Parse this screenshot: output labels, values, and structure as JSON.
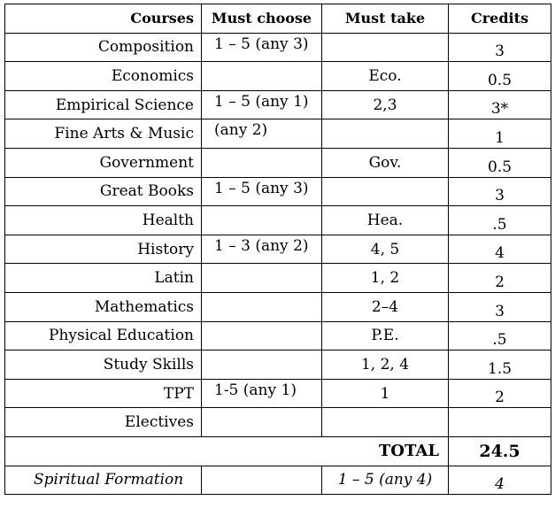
{
  "headers": {
    "courses": "Courses",
    "must_choose": "Must choose",
    "must_take": "Must take",
    "credits": "Credits"
  },
  "rows": [
    {
      "course": "Composition",
      "choose": "1 – 5 (any 3)",
      "take": "",
      "credits": "3"
    },
    {
      "course": "Economics",
      "choose": "",
      "take": "Eco.",
      "credits": "0.5"
    },
    {
      "course": "Empirical Science",
      "choose": "1 – 5 (any 1)",
      "take": "2,3",
      "credits": "3*"
    },
    {
      "course": "Fine Arts & Music",
      "choose": "(any 2)",
      "take": "",
      "credits": "1"
    },
    {
      "course": "Government",
      "choose": "",
      "take": "Gov.",
      "credits": "0.5"
    },
    {
      "course": "Great Books",
      "choose": "1 – 5 (any 3)",
      "take": "",
      "credits": "3"
    },
    {
      "course": "Health",
      "choose": "",
      "take": "Hea.",
      "credits": ".5"
    },
    {
      "course": "History",
      "choose": "1 – 3 (any 2)",
      "take": "4, 5",
      "credits": "4"
    },
    {
      "course": "Latin",
      "choose": "",
      "take": "1, 2",
      "credits": "2"
    },
    {
      "course": "Mathematics",
      "choose": "",
      "take": "2–4",
      "credits": "3"
    },
    {
      "course": "Physical Education",
      "choose": "",
      "take": "P.E.",
      "credits": ".5"
    },
    {
      "course": "Study Skills",
      "choose": "",
      "take": "1, 2, 4",
      "credits": "1.5"
    },
    {
      "course": "TPT",
      "choose": "1-5 (any 1)",
      "take": "1",
      "credits": "2"
    },
    {
      "course": "Electives",
      "choose": "",
      "take": "",
      "credits": ""
    }
  ],
  "total": {
    "label": "TOTAL",
    "value": "24.5"
  },
  "spiritual": {
    "course": "Spiritual Formation",
    "choose": "",
    "take": "1 – 5 (any 4)",
    "credits": "4"
  }
}
